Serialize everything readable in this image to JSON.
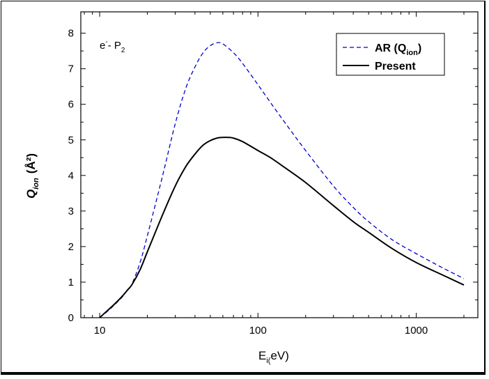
{
  "chart_data": {
    "type": "line",
    "xscale": "log",
    "xlim": [
      7.6,
      2450
    ],
    "ylim": [
      0,
      8.6
    ],
    "xticks": [
      10,
      100,
      1000
    ],
    "xtick_labels": [
      "10",
      "100",
      "1000"
    ],
    "yticks": [
      0,
      1,
      2,
      3,
      4,
      5,
      6,
      7,
      8
    ],
    "ytick_labels": [
      "0",
      "1",
      "2",
      "3",
      "4",
      "5",
      "6",
      "7",
      "8"
    ],
    "xlabel": {
      "main": "E",
      "sub": "i(",
      "tail": "eV)"
    },
    "ylabel": {
      "main": "Q",
      "sub": "ion",
      "unit": "(Å²)"
    },
    "annotation": {
      "e": "e",
      "sup": "-",
      "mid": "- P",
      "sub": "2"
    },
    "legend_position": "top-right",
    "grid": false,
    "series": [
      {
        "legend": {
          "main": "AR (Q",
          "sub": "ion",
          "tail": ")"
        },
        "color": "#0000cc",
        "style": "dashed",
        "x": [
          10,
          11,
          12,
          13,
          14,
          15,
          16,
          18,
          20,
          25,
          30,
          35,
          40,
          45,
          50,
          55,
          60,
          70,
          80,
          100,
          120,
          150,
          200,
          300,
          400,
          500,
          700,
          1000,
          1500,
          2000
        ],
        "y": [
          0,
          0.15,
          0.3,
          0.45,
          0.6,
          0.78,
          0.95,
          1.55,
          2.3,
          4.0,
          5.45,
          6.45,
          7.05,
          7.45,
          7.65,
          7.73,
          7.7,
          7.45,
          7.15,
          6.55,
          6.05,
          5.45,
          4.7,
          3.7,
          3.1,
          2.7,
          2.2,
          1.8,
          1.38,
          1.1
        ]
      },
      {
        "legend": {
          "main": "Present"
        },
        "color": "#000000",
        "style": "solid",
        "x": [
          10,
          11,
          12,
          13,
          14,
          15,
          16,
          18,
          20,
          25,
          30,
          35,
          40,
          45,
          50,
          55,
          60,
          65,
          70,
          80,
          100,
          120,
          150,
          200,
          300,
          400,
          500,
          700,
          1000,
          1500,
          2000
        ],
        "y": [
          0,
          0.17,
          0.32,
          0.47,
          0.62,
          0.78,
          0.93,
          1.35,
          1.85,
          2.9,
          3.7,
          4.25,
          4.6,
          4.85,
          4.98,
          5.05,
          5.07,
          5.07,
          5.05,
          4.95,
          4.7,
          4.5,
          4.2,
          3.8,
          3.15,
          2.7,
          2.4,
          1.95,
          1.55,
          1.18,
          0.92
        ]
      }
    ]
  }
}
